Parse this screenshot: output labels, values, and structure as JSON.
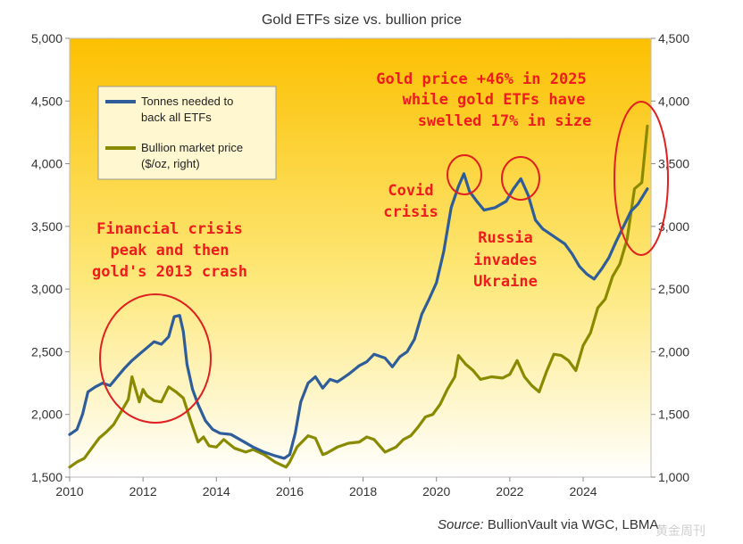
{
  "chart_data": {
    "type": "line",
    "title": "Gold ETFs size vs. bullion price",
    "source_label": "Source:",
    "source_text": "BullionVault via WGC, LBMA",
    "x_ticks": [
      "2010",
      "2012",
      "2014",
      "2016",
      "2018",
      "2020",
      "2022",
      "2024"
    ],
    "xlim": [
      2010,
      2025.85
    ],
    "y_left": {
      "ylim": [
        1500,
        5000
      ],
      "ticks": [
        "1,500",
        "2,000",
        "2,500",
        "3,000",
        "3,500",
        "4,000",
        "4,500",
        "5,000"
      ]
    },
    "y_right": {
      "ylim": [
        1000,
        4500
      ],
      "ticks": [
        "1,000",
        "1,500",
        "2,000",
        "2,500",
        "3,000",
        "3,500",
        "4,000",
        "4,500"
      ]
    },
    "legend": {
      "position": "top-left",
      "entries": [
        {
          "lines": [
            "Tonnes needed to",
            "back all ETFs"
          ]
        },
        {
          "lines": [
            "Bullion market price",
            "($/oz, right)"
          ]
        }
      ]
    },
    "series": [
      {
        "axis": "left",
        "color": "#2e5d9a",
        "x": [
          2010.0,
          2010.2,
          2010.35,
          2010.5,
          2010.7,
          2010.9,
          2011.1,
          2011.3,
          2011.5,
          2011.7,
          2011.9,
          2012.1,
          2012.3,
          2012.5,
          2012.7,
          2012.85,
          2013.0,
          2013.1,
          2013.2,
          2013.35,
          2013.5,
          2013.7,
          2013.9,
          2014.1,
          2014.4,
          2014.7,
          2015.0,
          2015.3,
          2015.6,
          2015.85,
          2016.0,
          2016.15,
          2016.3,
          2016.5,
          2016.7,
          2016.9,
          2017.1,
          2017.3,
          2017.6,
          2017.9,
          2018.1,
          2018.3,
          2018.6,
          2018.8,
          2019.0,
          2019.2,
          2019.4,
          2019.6,
          2019.8,
          2020.0,
          2020.2,
          2020.4,
          2020.6,
          2020.75,
          2020.9,
          2021.1,
          2021.3,
          2021.6,
          2021.9,
          2022.1,
          2022.3,
          2022.5,
          2022.7,
          2022.9,
          2023.1,
          2023.3,
          2023.5,
          2023.7,
          2023.9,
          2024.1,
          2024.3,
          2024.5,
          2024.7,
          2024.9,
          2025.1,
          2025.3,
          2025.5,
          2025.75
        ],
        "values": [
          1840,
          1880,
          2000,
          2180,
          2220,
          2250,
          2230,
          2300,
          2370,
          2430,
          2480,
          2530,
          2580,
          2560,
          2620,
          2780,
          2790,
          2660,
          2400,
          2200,
          2080,
          1950,
          1880,
          1850,
          1840,
          1790,
          1740,
          1700,
          1670,
          1650,
          1680,
          1850,
          2100,
          2250,
          2300,
          2210,
          2280,
          2260,
          2320,
          2390,
          2420,
          2480,
          2450,
          2380,
          2460,
          2500,
          2600,
          2800,
          2920,
          3050,
          3300,
          3650,
          3820,
          3920,
          3780,
          3700,
          3630,
          3650,
          3700,
          3800,
          3880,
          3750,
          3550,
          3480,
          3440,
          3400,
          3360,
          3280,
          3180,
          3120,
          3080,
          3160,
          3250,
          3380,
          3500,
          3620,
          3680,
          3800
        ]
      },
      {
        "axis": "right",
        "color": "#8a8a00",
        "x": [
          2010.0,
          2010.2,
          2010.4,
          2010.6,
          2010.8,
          2011.0,
          2011.2,
          2011.4,
          2011.6,
          2011.7,
          2011.8,
          2011.9,
          2012.0,
          2012.1,
          2012.3,
          2012.5,
          2012.7,
          2012.9,
          2013.1,
          2013.3,
          2013.5,
          2013.65,
          2013.8,
          2014.0,
          2014.2,
          2014.5,
          2014.8,
          2015.0,
          2015.3,
          2015.6,
          2015.9,
          2016.0,
          2016.2,
          2016.5,
          2016.7,
          2016.9,
          2017.0,
          2017.3,
          2017.6,
          2017.9,
          2018.1,
          2018.3,
          2018.6,
          2018.9,
          2019.1,
          2019.3,
          2019.5,
          2019.7,
          2019.9,
          2020.1,
          2020.3,
          2020.5,
          2020.6,
          2020.8,
          2021.0,
          2021.2,
          2021.5,
          2021.8,
          2022.0,
          2022.2,
          2022.4,
          2022.6,
          2022.8,
          2023.0,
          2023.2,
          2023.4,
          2023.6,
          2023.8,
          2024.0,
          2024.2,
          2024.4,
          2024.6,
          2024.8,
          2025.0,
          2025.2,
          2025.4,
          2025.6,
          2025.75
        ],
        "values": [
          1080,
          1120,
          1150,
          1230,
          1310,
          1360,
          1420,
          1520,
          1620,
          1800,
          1700,
          1600,
          1700,
          1650,
          1610,
          1600,
          1720,
          1680,
          1630,
          1450,
          1280,
          1320,
          1250,
          1240,
          1300,
          1230,
          1200,
          1220,
          1180,
          1120,
          1080,
          1120,
          1240,
          1330,
          1310,
          1180,
          1190,
          1240,
          1270,
          1280,
          1320,
          1300,
          1200,
          1240,
          1300,
          1330,
          1400,
          1480,
          1500,
          1580,
          1700,
          1800,
          1970,
          1900,
          1850,
          1780,
          1800,
          1790,
          1820,
          1930,
          1800,
          1730,
          1680,
          1840,
          1980,
          1970,
          1930,
          1850,
          2050,
          2150,
          2350,
          2420,
          2600,
          2700,
          2900,
          3300,
          3350,
          3800
        ]
      }
    ],
    "annotations": {
      "financial": [
        "Financial crisis",
        "peak and then",
        "gold's 2013 crash"
      ],
      "covid": [
        "Covid",
        "crisis"
      ],
      "russia": [
        "Russia",
        "invades",
        "Ukraine"
      ],
      "top": [
        "Gold price +46% in 2025",
        "while gold ETFs have",
        "swelled 17% in size"
      ]
    }
  },
  "watermark": "黄金周刊"
}
